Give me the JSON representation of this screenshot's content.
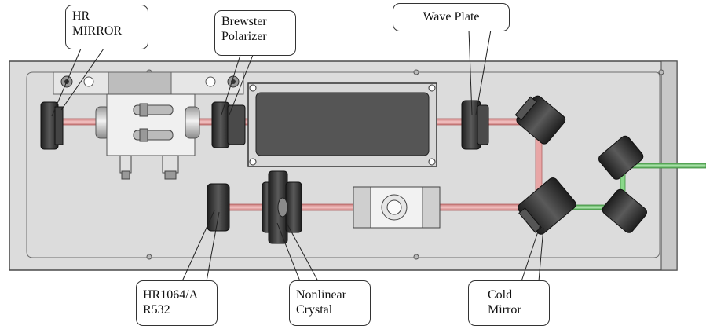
{
  "labels": {
    "hr_mirror": [
      "HR",
      "MIRROR"
    ],
    "brewster_polarizer": [
      "Brewster",
      "Polarizer"
    ],
    "wave_plate": [
      "Wave Plate"
    ],
    "hr1064_ar532": [
      "HR1064/A",
      "R532"
    ],
    "nonlinear_crystal": [
      "Nonlinear",
      "Crystal"
    ],
    "cold_mirror": [
      "Cold",
      "Mirror"
    ]
  },
  "colors": {
    "baseplate": "#d9d9d9",
    "baseplate_edge": "#555555",
    "fundamental_beam": "#e8a0a0",
    "second_harmonic_beam": "#7fd07f",
    "mount_dark": "#3a3a3a",
    "callout_border": "#333333"
  },
  "icons": [
    "screw-icon",
    "mirror-mount-icon",
    "crystal-mount-icon",
    "pump-chamber-icon",
    "q-switch-housing-icon"
  ]
}
